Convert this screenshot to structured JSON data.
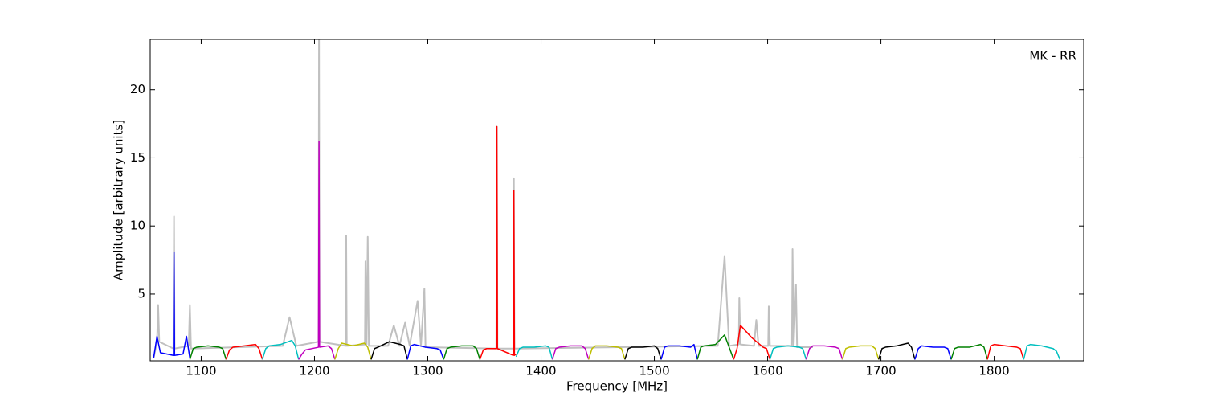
{
  "chart_data": {
    "type": "line",
    "annotation": "MK - RR",
    "x_label": "Frequency [MHz]",
    "y_label": "Amplitude [arbitrary units]",
    "xlim": [
      1055,
      1879
    ],
    "ylim": [
      0.1,
      23.7
    ],
    "xticks": [
      1100,
      1200,
      1300,
      1400,
      1500,
      1600,
      1700,
      1800
    ],
    "yticks": [
      5,
      10,
      15,
      20
    ],
    "series": [
      {
        "color": "#c0c0c0",
        "x": [
          1058,
          1061,
          1062,
          1063,
          1075.5,
          1076,
          1076.5,
          1089,
          1090,
          1091,
          1172,
          1178,
          1184,
          1203.5,
          1204,
          1204.5,
          1227.5,
          1228,
          1228.5,
          1244.5,
          1245,
          1246,
          1247,
          1248,
          1265,
          1270,
          1275,
          1280,
          1284,
          1291,
          1294,
          1297,
          1298,
          1360.5,
          1361,
          1361.5,
          1375.5,
          1376,
          1376.5,
          1556,
          1562,
          1566,
          1574.5,
          1575,
          1576,
          1588,
          1590,
          1592,
          1600.5,
          1601,
          1602,
          1621.5,
          1622,
          1623,
          1625,
          1626,
          1640
        ],
        "values": [
          0.3,
          1.5,
          4.2,
          1.5,
          1,
          10.7,
          1,
          1.2,
          4.2,
          1,
          1.2,
          3.3,
          1.2,
          1.5,
          23.7,
          1.5,
          1.2,
          9.3,
          1.2,
          1.3,
          7.4,
          1.3,
          9.2,
          1.2,
          1.2,
          2.7,
          1.2,
          2.9,
          1.2,
          4.5,
          1.2,
          5.4,
          1.1,
          1,
          17.3,
          1,
          1,
          13.5,
          1,
          1.2,
          7.8,
          1.2,
          1.3,
          4.7,
          1.3,
          1.2,
          3.1,
          1.2,
          1.2,
          4.1,
          1.2,
          1.2,
          8.3,
          1.2,
          5.7,
          1.1,
          1.1
        ]
      },
      {
        "color": "#0000ff",
        "x": [
          1058,
          1061,
          1064,
          1075.5,
          1076,
          1076.5,
          1084,
          1087,
          1090
        ],
        "values": [
          0.3,
          1.9,
          0.7,
          0.5,
          8.1,
          0.5,
          0.6,
          1.9,
          0.3
        ]
      },
      {
        "color": "#008000",
        "x": [
          1090,
          1093,
          1096,
          1106,
          1116,
          1119,
          1122
        ],
        "values": [
          0.2,
          1.0,
          1.1,
          1.2,
          1.1,
          1.0,
          0.2
        ]
      },
      {
        "color": "#ff0000",
        "x": [
          1122,
          1125,
          1128,
          1138,
          1148,
          1151,
          1154
        ],
        "values": [
          0.2,
          0.9,
          1.1,
          1.2,
          1.3,
          1.0,
          0.2
        ]
      },
      {
        "color": "#00bfbf",
        "x": [
          1154,
          1157,
          1160,
          1170,
          1180,
          1183,
          1186
        ],
        "values": [
          0.2,
          1.0,
          1.2,
          1.3,
          1.6,
          1.2,
          0.2
        ]
      },
      {
        "color": "#bf00bf",
        "x": [
          1186,
          1189,
          1192,
          1203.5,
          1204,
          1204.5,
          1212,
          1215,
          1218
        ],
        "values": [
          0.2,
          0.6,
          0.9,
          1.1,
          16.2,
          1.1,
          1.2,
          1.0,
          0.2
        ]
      },
      {
        "color": "#bfbf00",
        "x": [
          1218,
          1221,
          1224,
          1234,
          1244,
          1247,
          1250
        ],
        "values": [
          0.2,
          1.0,
          1.4,
          1.2,
          1.4,
          1.1,
          0.2
        ]
      },
      {
        "color": "#000000",
        "x": [
          1250,
          1253,
          1256,
          1266,
          1276,
          1279,
          1282
        ],
        "values": [
          0.2,
          1.0,
          1.1,
          1.5,
          1.3,
          1.2,
          0.2
        ]
      },
      {
        "color": "#0000ff",
        "x": [
          1282,
          1285,
          1288,
          1298,
          1308,
          1311,
          1314
        ],
        "values": [
          0.2,
          1.2,
          1.3,
          1.1,
          1.0,
          0.9,
          0.2
        ]
      },
      {
        "color": "#008000",
        "x": [
          1314,
          1317,
          1320,
          1330,
          1340,
          1343,
          1346
        ],
        "values": [
          0.2,
          1.0,
          1.1,
          1.2,
          1.2,
          1.0,
          0.2
        ]
      },
      {
        "color": "#ff0000",
        "x": [
          1346,
          1349,
          1352,
          1360.5,
          1361,
          1361.5,
          1375.5,
          1376,
          1376.5,
          1378
        ],
        "values": [
          0.2,
          0.9,
          1.0,
          1.0,
          17.3,
          1.0,
          0.5,
          12.6,
          0.5,
          0.6
        ]
      },
      {
        "color": "#00bfbf",
        "x": [
          1378,
          1381,
          1384,
          1394,
          1404,
          1407,
          1410
        ],
        "values": [
          0.4,
          1.0,
          1.1,
          1.1,
          1.2,
          1.1,
          0.2
        ]
      },
      {
        "color": "#bf00bf",
        "x": [
          1410,
          1413,
          1416,
          1426,
          1436,
          1439,
          1442
        ],
        "values": [
          0.2,
          1.0,
          1.1,
          1.2,
          1.2,
          1.0,
          0.2
        ]
      },
      {
        "color": "#bfbf00",
        "x": [
          1442,
          1445,
          1448,
          1458,
          1468,
          1471,
          1474
        ],
        "values": [
          0.2,
          1.0,
          1.2,
          1.2,
          1.1,
          1.0,
          0.2
        ]
      },
      {
        "color": "#000000",
        "x": [
          1474,
          1477,
          1480,
          1490,
          1500,
          1503,
          1506
        ],
        "values": [
          0.2,
          1.0,
          1.1,
          1.1,
          1.2,
          1.0,
          0.2
        ]
      },
      {
        "color": "#0000ff",
        "x": [
          1506,
          1509,
          1512,
          1522,
          1532,
          1535,
          1538
        ],
        "values": [
          0.2,
          1.1,
          1.2,
          1.2,
          1.1,
          1.3,
          0.2
        ]
      },
      {
        "color": "#008000",
        "x": [
          1538,
          1541,
          1544,
          1554,
          1562,
          1566,
          1570
        ],
        "values": [
          0.2,
          1.1,
          1.2,
          1.3,
          2.0,
          1.1,
          0.2
        ]
      },
      {
        "color": "#ff0000",
        "x": [
          1570,
          1573,
          1576,
          1586,
          1596,
          1599,
          1602
        ],
        "values": [
          0.2,
          1.0,
          2.7,
          1.8,
          1.1,
          1.0,
          0.2
        ]
      },
      {
        "color": "#00bfbf",
        "x": [
          1602,
          1605,
          1608,
          1618,
          1628,
          1631,
          1634
        ],
        "values": [
          0.2,
          1.0,
          1.1,
          1.2,
          1.1,
          1.0,
          0.2
        ]
      },
      {
        "color": "#bf00bf",
        "x": [
          1634,
          1637,
          1640,
          1650,
          1660,
          1663,
          1666
        ],
        "values": [
          0.2,
          1.0,
          1.2,
          1.2,
          1.1,
          1.0,
          0.2
        ]
      },
      {
        "color": "#bfbf00",
        "x": [
          1666,
          1669,
          1672,
          1682,
          1692,
          1695,
          1698
        ],
        "values": [
          0.2,
          1.0,
          1.1,
          1.2,
          1.2,
          1.0,
          0.2
        ]
      },
      {
        "color": "#000000",
        "x": [
          1698,
          1701,
          1704,
          1714,
          1724,
          1727,
          1730
        ],
        "values": [
          0.2,
          1.0,
          1.1,
          1.2,
          1.4,
          1.1,
          0.2
        ]
      },
      {
        "color": "#0000ff",
        "x": [
          1730,
          1733,
          1736,
          1746,
          1756,
          1759,
          1762
        ],
        "values": [
          0.2,
          1.0,
          1.2,
          1.1,
          1.1,
          1.0,
          0.2
        ]
      },
      {
        "color": "#008000",
        "x": [
          1762,
          1765,
          1768,
          1778,
          1788,
          1791,
          1794
        ],
        "values": [
          0.2,
          1.0,
          1.1,
          1.1,
          1.3,
          1.1,
          0.2
        ]
      },
      {
        "color": "#ff0000",
        "x": [
          1794,
          1797,
          1800,
          1810,
          1820,
          1823,
          1826
        ],
        "values": [
          0.2,
          1.2,
          1.3,
          1.2,
          1.1,
          1.0,
          0.2
        ]
      },
      {
        "color": "#00bfbf",
        "x": [
          1826,
          1829,
          1832,
          1842,
          1852,
          1855,
          1858
        ],
        "values": [
          0.2,
          1.2,
          1.3,
          1.2,
          1.0,
          0.8,
          0.2
        ]
      }
    ]
  }
}
